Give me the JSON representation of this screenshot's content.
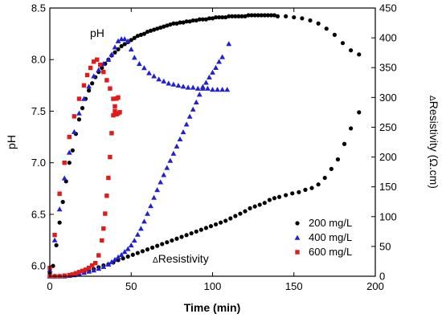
{
  "chart_data": {
    "type": "scatter",
    "xlabel": "Time (min)",
    "ylabel_left": "pH",
    "ylabel_right_prefix": "Δ",
    "ylabel_right": "Resistivity (Ω.cm)",
    "xlim": [
      0,
      200
    ],
    "ylim_left": [
      5.9,
      8.5
    ],
    "ylim_right": [
      0,
      450
    ],
    "xticks": [
      0,
      50,
      100,
      150,
      200
    ],
    "yticks_left": [
      6.0,
      6.5,
      7.0,
      7.5,
      8.0,
      8.5
    ],
    "yticks_left_labels": [
      "6.0",
      "6.5",
      "7.0",
      "7.5",
      "8.0",
      "8.5"
    ],
    "yticks_right": [
      0,
      50,
      100,
      150,
      200,
      250,
      300,
      350,
      400,
      450
    ],
    "annotations": [
      {
        "text": "pH"
      },
      {
        "text_prefix": "Δ",
        "text": "Resistivity"
      }
    ],
    "legend_position": "bottom-right",
    "series": [
      {
        "name": "200 mg/L",
        "color": "#000000",
        "marker": "circle",
        "ph": [
          [
            0,
            5.93
          ],
          [
            2,
            6.0
          ],
          [
            4,
            6.2
          ],
          [
            6,
            6.42
          ],
          [
            8,
            6.62
          ],
          [
            10,
            6.82
          ],
          [
            12,
            7.0
          ],
          [
            14,
            7.12
          ],
          [
            16,
            7.28
          ],
          [
            18,
            7.42
          ],
          [
            20,
            7.53
          ],
          [
            22,
            7.62
          ],
          [
            24,
            7.7
          ],
          [
            26,
            7.77
          ],
          [
            28,
            7.83
          ],
          [
            30,
            7.88
          ],
          [
            32,
            7.92
          ],
          [
            34,
            7.96
          ],
          [
            36,
            8.0
          ],
          [
            38,
            8.04
          ],
          [
            40,
            8.07
          ],
          [
            42,
            8.1
          ],
          [
            44,
            8.13
          ],
          [
            46,
            8.15
          ],
          [
            48,
            8.17
          ],
          [
            50,
            8.19
          ],
          [
            52,
            8.21
          ],
          [
            54,
            8.23
          ],
          [
            56,
            8.24
          ],
          [
            58,
            8.25
          ],
          [
            60,
            8.27
          ],
          [
            62,
            8.28
          ],
          [
            64,
            8.29
          ],
          [
            66,
            8.3
          ],
          [
            68,
            8.31
          ],
          [
            70,
            8.32
          ],
          [
            72,
            8.33
          ],
          [
            74,
            8.34
          ],
          [
            76,
            8.35
          ],
          [
            78,
            8.35
          ],
          [
            80,
            8.36
          ],
          [
            82,
            8.36
          ],
          [
            84,
            8.37
          ],
          [
            86,
            8.37
          ],
          [
            88,
            8.38
          ],
          [
            90,
            8.38
          ],
          [
            92,
            8.39
          ],
          [
            94,
            8.39
          ],
          [
            96,
            8.39
          ],
          [
            98,
            8.4
          ],
          [
            100,
            8.4
          ],
          [
            102,
            8.41
          ],
          [
            104,
            8.41
          ],
          [
            106,
            8.41
          ],
          [
            108,
            8.41
          ],
          [
            110,
            8.42
          ],
          [
            112,
            8.42
          ],
          [
            114,
            8.42
          ],
          [
            116,
            8.42
          ],
          [
            118,
            8.42
          ],
          [
            120,
            8.42
          ],
          [
            122,
            8.43
          ],
          [
            124,
            8.43
          ],
          [
            126,
            8.43
          ],
          [
            128,
            8.43
          ],
          [
            130,
            8.43
          ],
          [
            132,
            8.43
          ],
          [
            134,
            8.43
          ],
          [
            136,
            8.43
          ],
          [
            138,
            8.43
          ],
          [
            140,
            8.42
          ],
          [
            145,
            8.42
          ],
          [
            150,
            8.41
          ],
          [
            155,
            8.4
          ],
          [
            160,
            8.38
          ],
          [
            165,
            8.35
          ],
          [
            170,
            8.3
          ],
          [
            175,
            8.24
          ],
          [
            180,
            8.16
          ],
          [
            185,
            8.09
          ],
          [
            190,
            8.05
          ]
        ],
        "resistivity": [
          [
            0,
            0
          ],
          [
            3,
            0
          ],
          [
            6,
            0
          ],
          [
            9,
            1
          ],
          [
            12,
            2
          ],
          [
            15,
            3
          ],
          [
            18,
            5
          ],
          [
            21,
            7
          ],
          [
            24,
            9
          ],
          [
            27,
            12
          ],
          [
            30,
            15
          ],
          [
            33,
            18
          ],
          [
            36,
            20
          ],
          [
            39,
            23
          ],
          [
            42,
            27
          ],
          [
            45,
            30
          ],
          [
            48,
            33
          ],
          [
            51,
            36
          ],
          [
            54,
            39
          ],
          [
            57,
            42
          ],
          [
            60,
            45
          ],
          [
            63,
            48
          ],
          [
            66,
            51
          ],
          [
            69,
            54
          ],
          [
            72,
            57
          ],
          [
            75,
            60
          ],
          [
            78,
            63
          ],
          [
            81,
            66
          ],
          [
            84,
            69
          ],
          [
            87,
            72
          ],
          [
            90,
            75
          ],
          [
            93,
            78
          ],
          [
            96,
            81
          ],
          [
            99,
            84
          ],
          [
            102,
            87
          ],
          [
            105,
            90
          ],
          [
            108,
            93
          ],
          [
            111,
            97
          ],
          [
            114,
            101
          ],
          [
            117,
            105
          ],
          [
            120,
            109
          ],
          [
            123,
            114
          ],
          [
            126,
            117
          ],
          [
            129,
            120
          ],
          [
            132,
            123
          ],
          [
            135,
            128
          ],
          [
            138,
            131
          ],
          [
            141,
            133
          ],
          [
            145,
            136
          ],
          [
            149,
            139
          ],
          [
            153,
            141
          ],
          [
            157,
            145
          ],
          [
            161,
            148
          ],
          [
            165,
            154
          ],
          [
            169,
            165
          ],
          [
            173,
            180
          ],
          [
            177,
            196
          ],
          [
            181,
            222
          ],
          [
            185,
            248
          ],
          [
            190,
            275
          ]
        ]
      },
      {
        "name": "400 mg/L",
        "color": "#1f1fd6",
        "marker": "triangle",
        "ph": [
          [
            0,
            5.96
          ],
          [
            3,
            6.25
          ],
          [
            6,
            6.55
          ],
          [
            9,
            6.85
          ],
          [
            12,
            7.1
          ],
          [
            15,
            7.3
          ],
          [
            18,
            7.48
          ],
          [
            21,
            7.62
          ],
          [
            24,
            7.74
          ],
          [
            27,
            7.84
          ],
          [
            30,
            7.9
          ],
          [
            33,
            7.96
          ],
          [
            36,
            8.0
          ],
          [
            38,
            8.05
          ],
          [
            40,
            8.12
          ],
          [
            42,
            8.18
          ],
          [
            44,
            8.2
          ],
          [
            46,
            8.2
          ],
          [
            48,
            8.18
          ],
          [
            50,
            8.1
          ],
          [
            52,
            8.02
          ],
          [
            55,
            7.96
          ],
          [
            58,
            7.92
          ],
          [
            61,
            7.87
          ],
          [
            64,
            7.84
          ],
          [
            67,
            7.81
          ],
          [
            70,
            7.79
          ],
          [
            73,
            7.77
          ],
          [
            76,
            7.76
          ],
          [
            79,
            7.75
          ],
          [
            82,
            7.74
          ],
          [
            85,
            7.73
          ],
          [
            88,
            7.73
          ],
          [
            91,
            7.72
          ],
          [
            94,
            7.72
          ],
          [
            97,
            7.72
          ],
          [
            100,
            7.71
          ],
          [
            103,
            7.71
          ],
          [
            106,
            7.71
          ],
          [
            109,
            7.71
          ]
        ],
        "resistivity": [
          [
            0,
            0
          ],
          [
            3,
            0
          ],
          [
            6,
            0
          ],
          [
            9,
            0
          ],
          [
            12,
            1
          ],
          [
            15,
            2
          ],
          [
            18,
            4
          ],
          [
            21,
            6
          ],
          [
            24,
            8
          ],
          [
            27,
            10
          ],
          [
            30,
            13
          ],
          [
            33,
            16
          ],
          [
            36,
            20
          ],
          [
            38,
            24
          ],
          [
            40,
            28
          ],
          [
            42,
            32
          ],
          [
            44,
            36
          ],
          [
            46,
            41
          ],
          [
            48,
            46
          ],
          [
            50,
            52
          ],
          [
            52,
            60
          ],
          [
            54,
            70
          ],
          [
            56,
            80
          ],
          [
            58,
            92
          ],
          [
            60,
            105
          ],
          [
            62,
            118
          ],
          [
            64,
            132
          ],
          [
            66,
            145
          ],
          [
            68,
            158
          ],
          [
            70,
            170
          ],
          [
            72,
            182
          ],
          [
            74,
            194
          ],
          [
            76,
            206
          ],
          [
            78,
            218
          ],
          [
            80,
            230
          ],
          [
            82,
            242
          ],
          [
            84,
            255
          ],
          [
            86,
            268
          ],
          [
            88,
            280
          ],
          [
            90,
            292
          ],
          [
            92,
            305
          ],
          [
            94,
            318
          ],
          [
            96,
            325
          ],
          [
            98,
            334
          ],
          [
            100,
            342
          ],
          [
            102,
            350
          ],
          [
            104,
            360
          ],
          [
            106,
            368
          ],
          [
            110,
            390
          ]
        ]
      },
      {
        "name": "600 mg/L",
        "color": "#e01b1b",
        "marker": "square",
        "ph": [
          [
            0,
            5.98
          ],
          [
            3,
            6.3
          ],
          [
            6,
            6.7
          ],
          [
            9,
            7.0
          ],
          [
            12,
            7.25
          ],
          [
            15,
            7.45
          ],
          [
            18,
            7.62
          ],
          [
            21,
            7.75
          ],
          [
            23,
            7.85
          ],
          [
            25,
            7.92
          ],
          [
            27,
            7.98
          ],
          [
            29,
            8.0
          ],
          [
            31,
            7.95
          ],
          [
            33,
            7.88
          ],
          [
            35,
            7.8
          ],
          [
            37,
            7.72
          ],
          [
            39,
            7.62
          ],
          [
            40,
            7.5
          ],
          [
            41,
            7.47
          ],
          [
            42,
            7.48
          ],
          [
            43,
            7.49
          ]
        ],
        "resistivity": [
          [
            0,
            0
          ],
          [
            3,
            0
          ],
          [
            6,
            0
          ],
          [
            9,
            1
          ],
          [
            12,
            2
          ],
          [
            14,
            3
          ],
          [
            16,
            5
          ],
          [
            18,
            7
          ],
          [
            20,
            9
          ],
          [
            22,
            11
          ],
          [
            24,
            14
          ],
          [
            26,
            18
          ],
          [
            28,
            22
          ],
          [
            30,
            35
          ],
          [
            32,
            60
          ],
          [
            33,
            80
          ],
          [
            34,
            105
          ],
          [
            35,
            135
          ],
          [
            36,
            165
          ],
          [
            37,
            200
          ],
          [
            38,
            240
          ],
          [
            39,
            270
          ],
          [
            40,
            285
          ],
          [
            41,
            298
          ],
          [
            42,
            300
          ]
        ]
      }
    ]
  }
}
